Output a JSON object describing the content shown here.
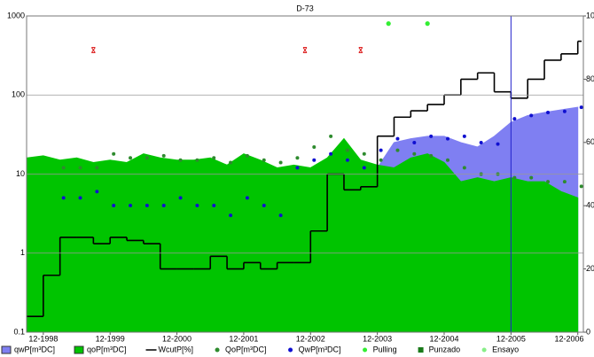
{
  "chart_data": {
    "type": "combo",
    "title": "D-73",
    "x": [
      "09-1998",
      "12-1998",
      "03-1999",
      "06-1999",
      "09-1999",
      "12-1999",
      "03-2000",
      "06-2000",
      "09-2000",
      "12-2000",
      "03-2001",
      "06-2001",
      "09-2001",
      "12-2001",
      "03-2002",
      "06-2002",
      "09-2002",
      "12-2002",
      "03-2003",
      "06-2003",
      "09-2003",
      "12-2003",
      "03-2004",
      "06-2004",
      "09-2004",
      "12-2004",
      "03-2005",
      "06-2005",
      "09-2005",
      "12-2005",
      "03-2006",
      "06-2006",
      "09-2006",
      "12-2006"
    ],
    "xticks": [
      "12-1998",
      "12-1999",
      "12-2000",
      "12-2001",
      "12-2002",
      "12-2003",
      "12-2004",
      "12-2005",
      "12-2006"
    ],
    "xlim": [
      "09-1998",
      "01-2007"
    ],
    "ylim": [
      0.1,
      1000
    ],
    "yticks": [
      0.1,
      1,
      10,
      100,
      1000
    ],
    "log_y": true,
    "y2lim": [
      0,
      100
    ],
    "y2ticks": [
      0,
      20,
      40,
      60,
      80,
      100
    ],
    "grid": true,
    "cursor_x": "12-2005",
    "cursor_color": "#2222cc",
    "series": [
      {
        "name": "qwP[m³DC]",
        "type": "area",
        "color": "#7f7ff2",
        "values": [
          3,
          3,
          3,
          3,
          3,
          3,
          3,
          3,
          3,
          3,
          3,
          3,
          3,
          3,
          3,
          3,
          3,
          3,
          3,
          3,
          3,
          12,
          25,
          28,
          30,
          30,
          25,
          22,
          30,
          45,
          55,
          60,
          65,
          70
        ]
      },
      {
        "name": "qoP[m³DC]",
        "type": "area",
        "color": "#00c400",
        "values": [
          16,
          17,
          15,
          16,
          14,
          15,
          14,
          18,
          16,
          15,
          15,
          16,
          13,
          18,
          15,
          12,
          13,
          12,
          16,
          28,
          15,
          13,
          12,
          16,
          18,
          14,
          8,
          9,
          8,
          9,
          8,
          8,
          6,
          5
        ]
      },
      {
        "name": "WcutP[%]",
        "type": "step",
        "axis": "y2",
        "color": "#000000",
        "values": [
          5,
          18,
          30,
          30,
          28,
          30,
          29,
          28,
          20,
          20,
          20,
          24,
          20,
          22,
          20,
          22,
          22,
          32,
          50,
          45,
          46,
          62,
          68,
          70,
          72,
          75,
          80,
          82,
          76,
          74,
          80,
          86,
          88,
          92
        ]
      },
      {
        "name": "QoP[m³DC]",
        "type": "dots",
        "color": "#2e8b2e",
        "values": [
          null,
          null,
          12,
          12,
          12,
          18,
          16,
          16,
          17,
          15,
          15,
          16,
          14,
          17,
          15,
          14,
          16,
          22,
          30,
          20,
          18,
          15,
          20,
          18,
          17,
          15,
          12,
          10,
          10,
          9,
          9,
          8,
          8,
          7
        ]
      },
      {
        "name": "QwP[m³DC]",
        "type": "dots",
        "color": "#1010d0",
        "values": [
          null,
          null,
          5,
          5,
          6,
          4,
          4,
          4,
          4,
          5,
          4,
          4,
          3,
          5,
          4,
          3,
          12,
          15,
          18,
          15,
          12,
          20,
          28,
          25,
          30,
          28,
          30,
          25,
          24,
          50,
          55,
          60,
          62,
          70
        ]
      },
      {
        "name": "Pulling",
        "type": "events",
        "color": "#33ee33",
        "x": [
          "02-2004",
          "09-2004"
        ],
        "values": [
          800,
          800
        ]
      },
      {
        "name": "Punzado",
        "type": "events",
        "color": "#1a7a1a",
        "x": [],
        "values": []
      },
      {
        "name": "Ensayo",
        "type": "events",
        "color": "#88ee88",
        "x": [],
        "values": []
      },
      {
        "type": "cross",
        "color": "#dd2222",
        "x": [
          "09-1999",
          "11-2002",
          "09-2003"
        ],
        "values": [
          370,
          370,
          370
        ]
      }
    ]
  }
}
